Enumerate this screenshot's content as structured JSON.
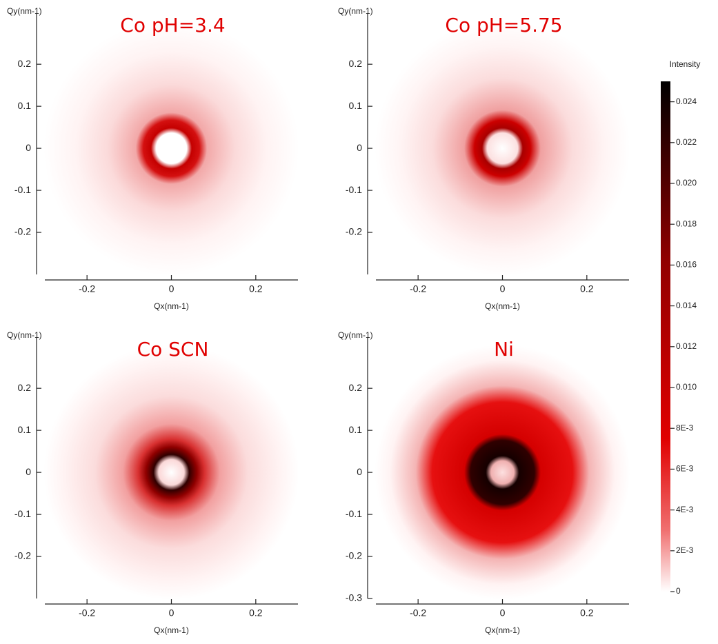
{
  "chart_data": [
    {
      "type": "heatmap",
      "title": "Co pH=3.4",
      "xlabel": "Qx(nm-1)",
      "ylabel": "Qy(nm-1)",
      "xlim": [
        -0.3,
        0.3
      ],
      "ylim": [
        -0.3,
        0.32
      ],
      "xticks": [
        -0.2,
        0,
        0.2
      ],
      "yticks": [
        0.2,
        0.1,
        0,
        -0.1,
        -0.2
      ]
    },
    {
      "type": "heatmap",
      "title": "Co pH=5.75",
      "xlabel": "Qx(nm-1)",
      "ylabel": "Qy(nm-1)",
      "xlim": [
        -0.3,
        0.3
      ],
      "ylim": [
        -0.3,
        0.32
      ],
      "xticks": [
        -0.2,
        0,
        0.2
      ],
      "yticks": [
        0.2,
        0.1,
        0,
        -0.1,
        -0.2
      ]
    },
    {
      "type": "heatmap",
      "title": "Co SCN",
      "xlabel": "Qx(nm-1)",
      "ylabel": "Qy(nm-1)",
      "xlim": [
        -0.3,
        0.3
      ],
      "ylim": [
        -0.3,
        0.32
      ],
      "xticks": [
        -0.2,
        0,
        0.2
      ],
      "yticks": [
        0.2,
        0.1,
        0,
        -0.1,
        -0.2
      ]
    },
    {
      "type": "heatmap",
      "title": "Ni",
      "xlabel": "Qx(nm-1)",
      "ylabel": "Qy(nm-1)",
      "xlim": [
        -0.3,
        0.3
      ],
      "ylim": [
        -0.3,
        0.32
      ],
      "xticks": [
        -0.2,
        0,
        0.2
      ],
      "yticks": [
        0.2,
        0.1,
        0,
        -0.1,
        -0.2,
        -0.3
      ]
    },
    {
      "type": "colorbar",
      "title": "Intensity",
      "lim": [
        0,
        0.025
      ],
      "ticks": [
        0.024,
        0.022,
        {
          "value": 0.02,
          "label": "0.020"
        },
        0.018,
        0.016,
        0.014,
        0.012,
        {
          "value": 0.01,
          "label": "0.010"
        },
        {
          "value": 0.008,
          "label": "8E-3"
        },
        {
          "value": 0.006,
          "label": "6E-3"
        },
        {
          "value": 0.004,
          "label": "4E-3"
        },
        {
          "value": 0.002,
          "label": "2E-3"
        },
        0
      ]
    }
  ]
}
